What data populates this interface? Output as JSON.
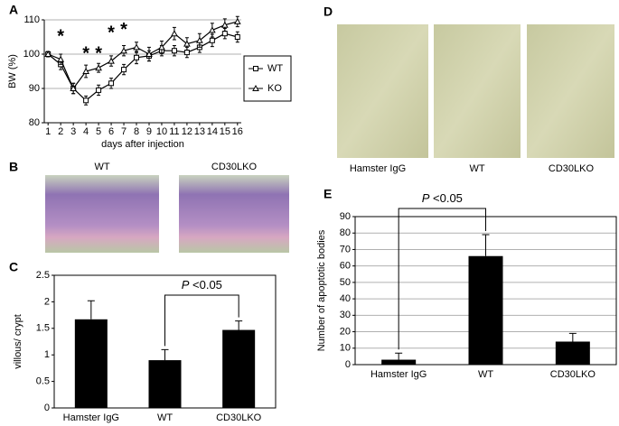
{
  "chart_data": [
    {
      "type": "line",
      "panel": "A",
      "y_label": "BW (%)",
      "x_label": "days after injection",
      "x": [
        1,
        2,
        3,
        4,
        5,
        6,
        7,
        8,
        9,
        10,
        11,
        12,
        13,
        14,
        15,
        16
      ],
      "xlim": [
        0.7,
        16.3
      ],
      "xticks": [
        1,
        2,
        3,
        4,
        5,
        6,
        7,
        8,
        9,
        10,
        11,
        12,
        13,
        14,
        15,
        16
      ],
      "ylim": [
        80,
        110
      ],
      "yticks": [
        80,
        90,
        100,
        110
      ],
      "grid": true,
      "legend": "right",
      "series": [
        {
          "name": "WT",
          "marker": "square",
          "color": "#000000",
          "values": [
            100,
            97,
            90,
            86.5,
            89.5,
            91.5,
            95.5,
            99,
            99.5,
            101,
            101,
            100.5,
            102,
            104,
            106,
            105
          ],
          "errors": [
            0.8,
            1.5,
            1.5,
            1.3,
            1.5,
            1.5,
            1.5,
            1.8,
            1.5,
            1.5,
            1.5,
            1.5,
            1.5,
            1.8,
            1.5,
            1.5
          ]
        },
        {
          "name": "KO",
          "marker": "triangle",
          "color": "#000000",
          "values": [
            100,
            98.5,
            90,
            95,
            96,
            98,
            101,
            102,
            100,
            102,
            106,
            103,
            104,
            107,
            108.5,
            109.5
          ],
          "errors": [
            0.8,
            1.5,
            1.5,
            1.8,
            1.3,
            1.5,
            1.5,
            1.5,
            2,
            1.8,
            1.8,
            1.8,
            2,
            2,
            1.8,
            1.5
          ]
        }
      ],
      "annotations": [
        {
          "x": 2,
          "y": 106,
          "text": "*"
        },
        {
          "x": 4,
          "y": 101,
          "text": "*"
        },
        {
          "x": 5,
          "y": 101,
          "text": "*"
        },
        {
          "x": 6,
          "y": 107,
          "text": "*"
        },
        {
          "x": 7,
          "y": 108,
          "text": "*"
        }
      ]
    },
    {
      "type": "bar",
      "panel": "C",
      "y_label": "villous/ crypt",
      "categories": [
        "Hamster IgG",
        "WT",
        "CD30LKO"
      ],
      "values": [
        1.67,
        0.9,
        1.47
      ],
      "errors": [
        0.35,
        0.2,
        0.17
      ],
      "color": "#000000",
      "ylim": [
        0,
        2.5
      ],
      "yticks": [
        0,
        0.5,
        1,
        1.5,
        2,
        2.5
      ],
      "grid": false,
      "significance": {
        "from": 1,
        "to": 2,
        "p_symbol": "P",
        "text": "<0.05"
      }
    },
    {
      "type": "bar",
      "panel": "E",
      "y_label": "Number of apoptotic bodies",
      "categories": [
        "Hamster IgG",
        "WT",
        "CD30LKO"
      ],
      "values": [
        3,
        66,
        14
      ],
      "errors": [
        4,
        13,
        5
      ],
      "color": "#000000",
      "ylim": [
        0,
        90
      ],
      "yticks": [
        0,
        10,
        20,
        30,
        40,
        50,
        60,
        70,
        80,
        90
      ],
      "grid": true,
      "significance": {
        "from": 0,
        "to": 1,
        "p_symbol": "P",
        "text": "<0.05"
      }
    }
  ],
  "images": [
    {
      "panel": "B",
      "labels": [
        "WT",
        "CD30LKO"
      ]
    },
    {
      "panel": "D",
      "labels": [
        "Hamster IgG",
        "WT",
        "CD30LKO"
      ]
    }
  ]
}
